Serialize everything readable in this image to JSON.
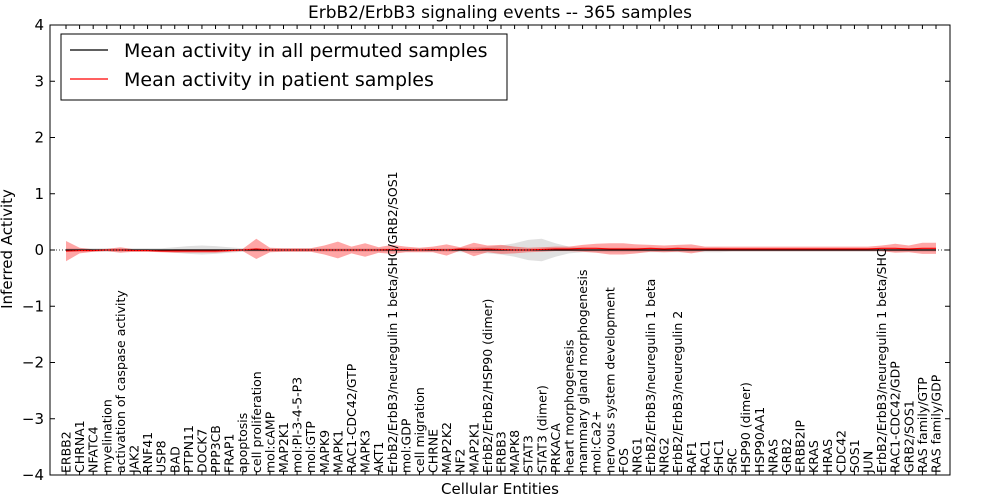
{
  "chart_data": {
    "type": "line",
    "title": "ErbB2/ErbB3 signaling events -- 365 samples",
    "xlabel": "Cellular Entities",
    "ylabel": "Inferred Activity",
    "ylim": [
      -4,
      4
    ],
    "yticks": [
      "4",
      "3",
      "2",
      "1",
      "0",
      "−1",
      "−2",
      "−3",
      "−4"
    ],
    "grid": false,
    "legend_position": "top-left",
    "categories": [
      "ERBB2",
      "CHRNA1",
      "NFATC4",
      "myelination",
      "activation of caspase activity",
      "JAK2",
      "RNF41",
      "USP8",
      "BAD",
      "PTPN11",
      "DOCK7",
      "PPP3CB",
      "FRAP1",
      "apoptosis",
      "cell proliferation",
      "mol:cAMP",
      "MAP2K1",
      "mol:PI-3-4-5-P3",
      "mol:GTP",
      "MAPK9",
      "MAPK1",
      "RAC1-CDC42/GTP",
      "MAPK3",
      "AKT1",
      "ErbB2/ErbB3/neuregulin 1 beta/SHC/GRB2/SOS1",
      "mol:GDP",
      "cell migration",
      "CHRNE",
      "MAP2K2",
      "NF2",
      "MAP2K1",
      "ErbB2/ErbB2/HSP90 (dimer)",
      "ERBB3",
      "MAPK8",
      "STAT3",
      "STAT3 (dimer)",
      "PRKACA",
      "heart morphogenesis",
      "mammary gland morphogenesis",
      "mol:Ca2+",
      "nervous system development",
      "FOS",
      "NRG1",
      "ErbB2/ErbB3/neuregulin 1 beta",
      "NRG2",
      "ErbB2/ErbB3/neuregulin 2",
      "RAF1",
      "RAC1",
      "SHC1",
      "SRC",
      "HSP90 (dimer)",
      "HSP90AA1",
      "NRAS",
      "GRB2",
      "ERBB2IP",
      "KRAS",
      "HRAS",
      "CDC42",
      "SOS1",
      "JUN",
      "ErbB2/ErbB3/neuregulin 1 beta/SHC",
      "RAC1-CDC42/GDP",
      "GRB2/SOS1",
      "RAS family/GTP",
      "RAS family/GDP"
    ],
    "series": [
      {
        "name": "Mean activity in all permuted samples",
        "color": "#000000",
        "values": [
          0,
          0,
          0,
          0,
          0,
          0,
          0,
          0,
          0,
          0,
          0,
          0,
          0,
          0,
          0,
          0,
          0,
          0,
          0,
          0,
          0,
          0,
          0,
          0,
          0,
          0,
          0,
          0,
          0,
          0,
          0,
          0,
          0,
          0,
          0,
          0,
          0,
          0,
          0,
          0,
          0,
          0,
          0,
          0,
          0,
          0,
          0,
          0,
          0,
          0,
          0,
          0,
          0,
          0,
          0,
          0,
          0,
          0,
          0,
          0,
          0,
          0,
          0,
          0,
          0
        ],
        "spread": [
          0.03,
          0.03,
          0.03,
          0.03,
          0.03,
          0.03,
          0.03,
          0.03,
          0.05,
          0.07,
          0.08,
          0.07,
          0.05,
          0.03,
          0.03,
          0.03,
          0.03,
          0.03,
          0.03,
          0.03,
          0.03,
          0.03,
          0.03,
          0.03,
          0.03,
          0.03,
          0.03,
          0.03,
          0.03,
          0.04,
          0.05,
          0.06,
          0.08,
          0.12,
          0.18,
          0.2,
          0.12,
          0.06,
          0.04,
          0.04,
          0.04,
          0.04,
          0.04,
          0.04,
          0.04,
          0.04,
          0.04,
          0.04,
          0.04,
          0.03,
          0.03,
          0.03,
          0.03,
          0.03,
          0.03,
          0.03,
          0.03,
          0.03,
          0.03,
          0.03,
          0.03,
          0.03,
          0.03,
          0.03,
          0.03
        ]
      },
      {
        "name": "Mean activity in patient samples",
        "color": "#ff0000",
        "values": [
          -0.02,
          -0.01,
          -0.01,
          0,
          0,
          -0.01,
          -0.01,
          -0.02,
          -0.02,
          -0.02,
          -0.02,
          -0.02,
          -0.01,
          0,
          0.02,
          0,
          0,
          0,
          0,
          0,
          0,
          0,
          0,
          0,
          0.01,
          0.01,
          0,
          0.01,
          0,
          0.02,
          0.01,
          0.02,
          0.01,
          0,
          0,
          0.01,
          0.02,
          0.02,
          0.03,
          0.03,
          0.02,
          0.02,
          0.02,
          0.03,
          0.02,
          0.03,
          0.02,
          0.02,
          0.02,
          0.02,
          0.02,
          0.02,
          0.02,
          0.02,
          0.02,
          0.02,
          0.02,
          0.02,
          0.02,
          0.02,
          0.03,
          0.03,
          0.02,
          0.03,
          0.03
        ],
        "spread": [
          0.18,
          0.05,
          0.02,
          0.02,
          0.05,
          0.02,
          0.02,
          0.02,
          0.03,
          0.03,
          0.03,
          0.03,
          0.02,
          0.02,
          0.18,
          0.04,
          0.03,
          0.03,
          0.03,
          0.08,
          0.15,
          0.06,
          0.12,
          0.05,
          0.08,
          0.05,
          0.04,
          0.05,
          0.1,
          0.03,
          0.12,
          0.06,
          0.08,
          0.06,
          0.04,
          0.04,
          0.04,
          0.04,
          0.06,
          0.08,
          0.1,
          0.1,
          0.08,
          0.06,
          0.06,
          0.06,
          0.08,
          0.04,
          0.04,
          0.04,
          0.04,
          0.04,
          0.04,
          0.04,
          0.04,
          0.04,
          0.04,
          0.04,
          0.04,
          0.04,
          0.05,
          0.08,
          0.06,
          0.1,
          0.1
        ]
      }
    ]
  }
}
